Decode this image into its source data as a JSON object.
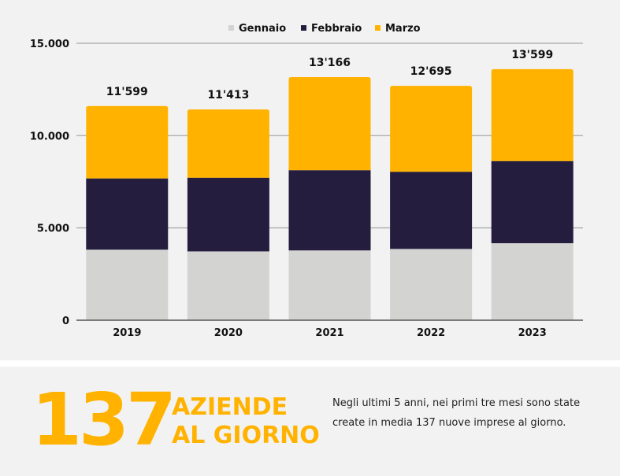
{
  "chart_data": {
    "type": "bar",
    "stacked": true,
    "categories": [
      "2019",
      "2020",
      "2021",
      "2022",
      "2023"
    ],
    "series": [
      {
        "name": "Gennaio",
        "color": "#d3d3d1",
        "values": [
          3820,
          3730,
          3780,
          3860,
          4170
        ]
      },
      {
        "name": "Febbraio",
        "color": "#251d3e",
        "values": [
          3860,
          3990,
          4350,
          4180,
          4450
        ]
      },
      {
        "name": "Marzo",
        "color": "#ffb300",
        "values": [
          3919,
          3693,
          5036,
          4655,
          4979
        ]
      }
    ],
    "totals": [
      "11'599",
      "11'413",
      "13'166",
      "12'695",
      "13'599"
    ],
    "yticks": [
      "0",
      "5.000",
      "10.000",
      "15.000"
    ],
    "ytick_values": [
      0,
      5000,
      10000,
      15000
    ],
    "ylim": [
      0,
      15000
    ],
    "grid": true,
    "legend_position": "top-center"
  },
  "stats": {
    "number": "137",
    "headline_line1": "AZIENDE",
    "headline_line2": "AL GIORNO",
    "description_line1": "Negli ultimi 5 anni, nei primi tre mesi sono state",
    "description_line2": "create in media 137 nuove imprese al giorno.",
    "accent_color": "#ffb300"
  }
}
